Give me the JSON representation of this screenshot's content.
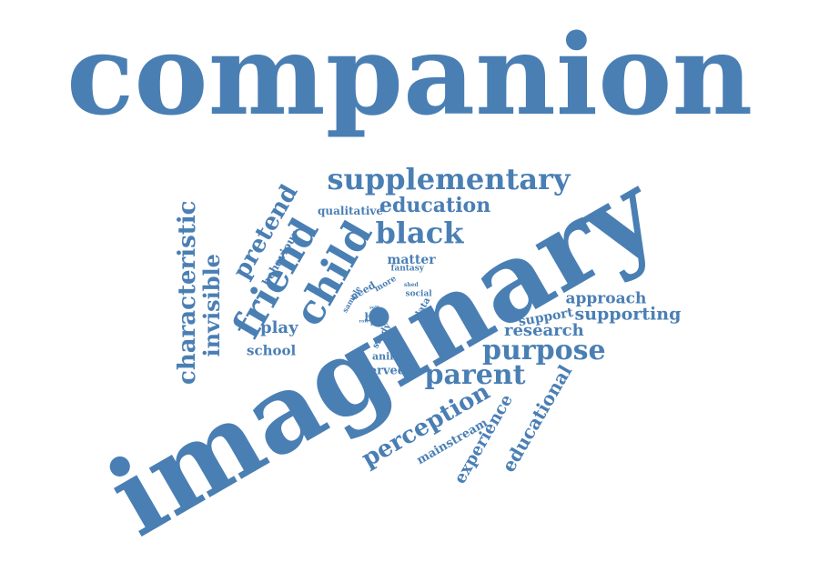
{
  "cloud": {
    "color": "#4a7fb4",
    "words": [
      "companion",
      "imaginary",
      "supplementary",
      "education",
      "black",
      "child",
      "friend",
      "pretend",
      "qualitative",
      "behaviour",
      "characteristic",
      "invisible",
      "matter",
      "fantasy",
      "more",
      "need",
      "sample",
      "shed",
      "social",
      "data",
      "boy",
      "self",
      "role",
      "form",
      "main",
      "light",
      "study",
      "animal",
      "play",
      "school",
      "served",
      "approach",
      "support",
      "supporting",
      "research",
      "purpose",
      "parent",
      "perception",
      "mainstream",
      "experience",
      "educational"
    ]
  }
}
